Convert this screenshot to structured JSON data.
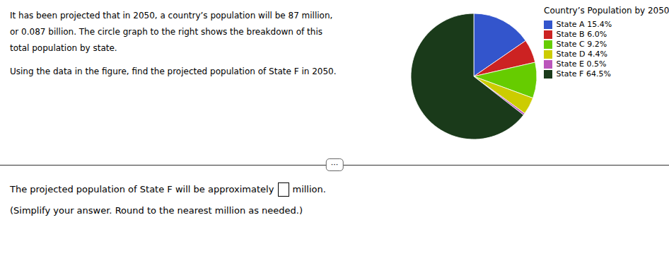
{
  "chart_data": {
    "type": "pie",
    "title": "Country’s Population by 2050",
    "categories": [
      "State A 15.4%",
      "State B 6.0%",
      "State C 9.2%",
      "State D 4.4%",
      "State E 0.5%",
      "State F 64.5%"
    ],
    "values": [
      15.4,
      6.0,
      9.2,
      4.4,
      0.5,
      64.5
    ],
    "colors": [
      "#3355cc",
      "#cc2222",
      "#66cc00",
      "#cccc00",
      "#bb55bb",
      "#1a3a1a"
    ],
    "legend": "right",
    "annotations": [
      "It has been projected that in 2050, a country’s population will be 87 million,",
      "or 0.087 billion. The circle graph to the right shows the breakdown of this",
      "total population by state.",
      "Using the data in the figure, find the projected population of State F in 2050.",
      "···",
      "The projected population of State F will be approximately",
      " million.",
      "(Simplify your answer. Round to the nearest million as needed.)"
    ]
  }
}
